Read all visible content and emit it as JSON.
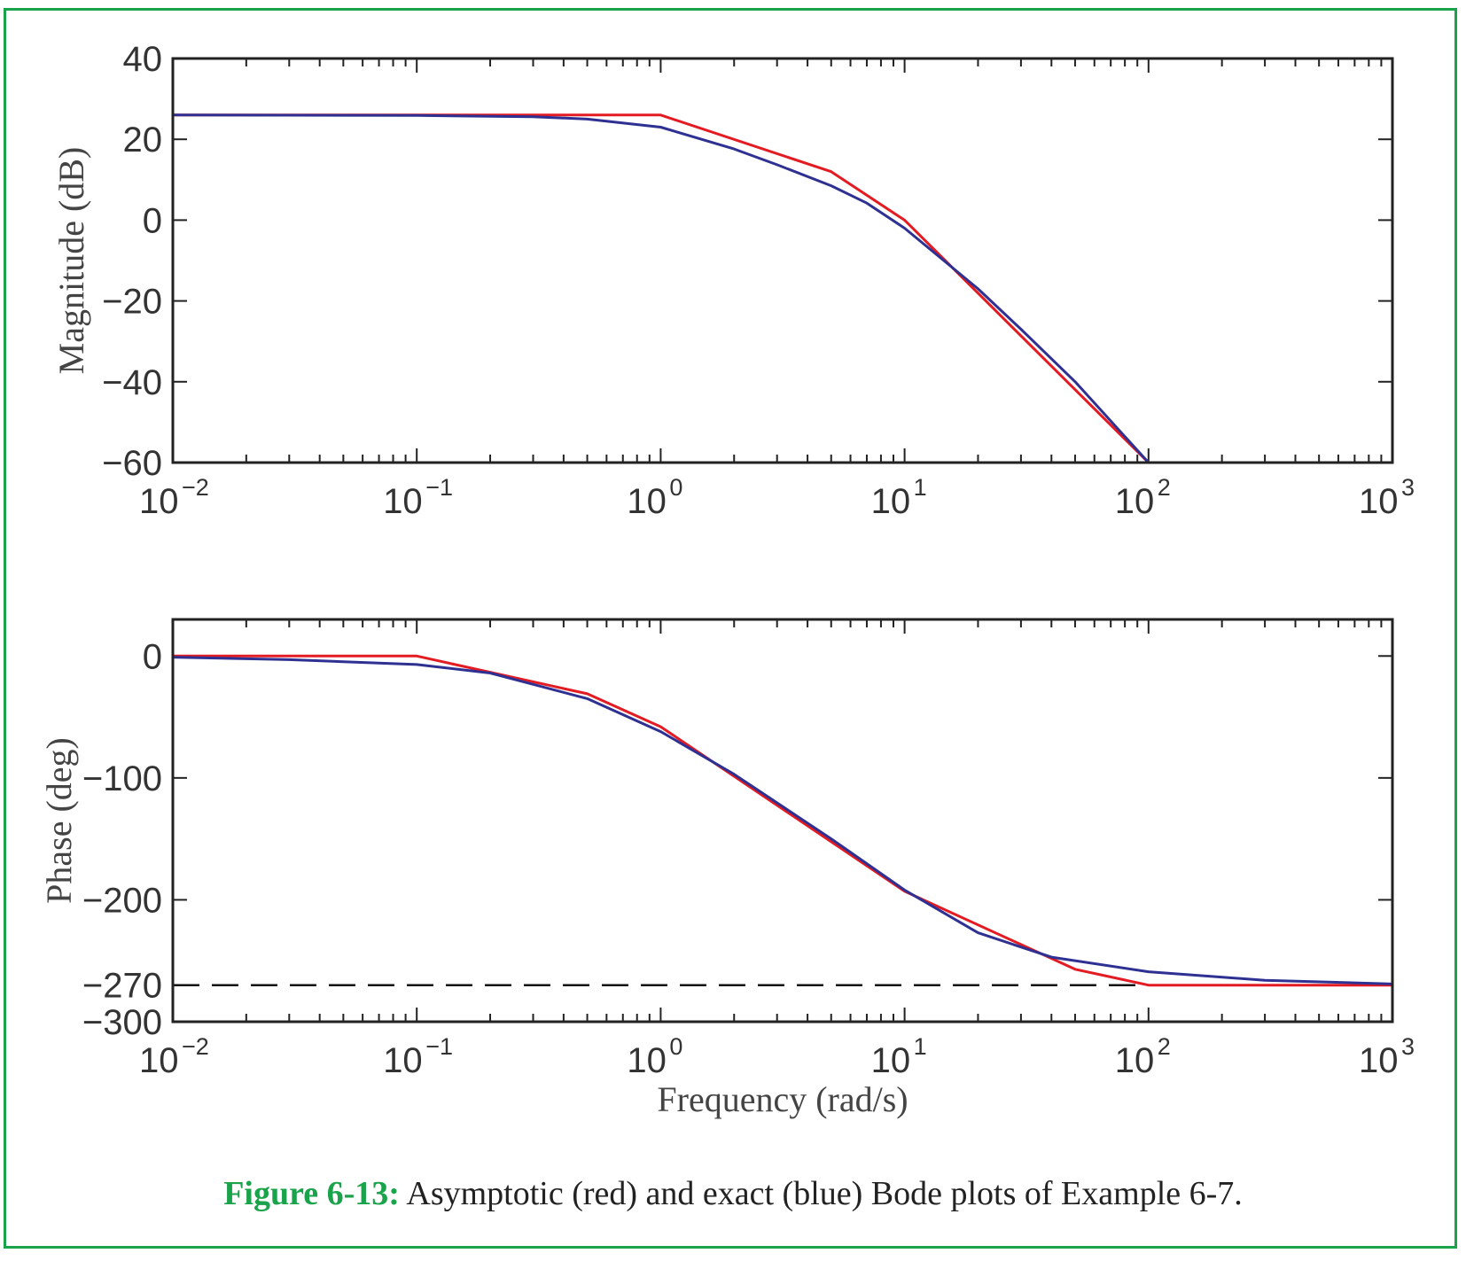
{
  "chart_data": [
    {
      "type": "line",
      "ylabel": "Magnitude (dB)",
      "xscale": "log",
      "xlim": [
        0.01,
        1000
      ],
      "ylim": [
        -60,
        40
      ],
      "yticks": [
        40,
        20,
        0,
        -20,
        -40,
        -60
      ],
      "ytick_labels": [
        "40",
        "20",
        "0",
        "−20",
        "−40",
        "−60"
      ],
      "xticks": [
        0.01,
        0.1,
        1,
        10,
        100,
        1000
      ],
      "xtick_labels": [
        {
          "base": "10",
          "exp": "−2"
        },
        {
          "base": "10",
          "exp": "−1"
        },
        {
          "base": "10",
          "exp": "0"
        },
        {
          "base": "10",
          "exp": "1"
        },
        {
          "base": "10",
          "exp": "2"
        },
        {
          "base": "10",
          "exp": "3"
        }
      ],
      "series": [
        {
          "color": "#e31b23",
          "style": "asymptotic",
          "x": [
            0.01,
            1,
            5,
            10,
            100
          ],
          "y": [
            26,
            26,
            12,
            0,
            -60
          ]
        },
        {
          "color": "#2e3192",
          "style": "exact",
          "x": [
            0.01,
            0.1,
            0.3,
            0.5,
            1,
            2,
            3,
            5,
            7,
            10,
            20,
            30,
            50,
            100
          ],
          "y": [
            26,
            25.9,
            25.6,
            25,
            23,
            17.6,
            13.7,
            8.5,
            4.2,
            -2,
            -17,
            -27,
            -40,
            -60
          ]
        }
      ]
    },
    {
      "type": "line",
      "ylabel": "Phase (deg)",
      "xlabel": "Frequency (rad/s)",
      "xscale": "log",
      "xlim": [
        0.01,
        1000
      ],
      "ylim": [
        -300,
        30
      ],
      "yticks": [
        0,
        -100,
        -200,
        -270,
        -300
      ],
      "ytick_labels": [
        "0",
        "−100",
        "−200",
        "−270",
        "−300"
      ],
      "xticks": [
        0.01,
        0.1,
        1,
        10,
        100,
        1000
      ],
      "xtick_labels": [
        {
          "base": "10",
          "exp": "−2"
        },
        {
          "base": "10",
          "exp": "−1"
        },
        {
          "base": "10",
          "exp": "0"
        },
        {
          "base": "10",
          "exp": "1"
        },
        {
          "base": "10",
          "exp": "2"
        },
        {
          "base": "10",
          "exp": "3"
        }
      ],
      "reference_line": {
        "y": -270,
        "style": "dashed",
        "color": "#111111"
      },
      "series": [
        {
          "color": "#e31b23",
          "style": "asymptotic",
          "x": [
            0.01,
            0.1,
            0.5,
            1,
            10,
            50,
            100,
            1000
          ],
          "y": [
            0,
            0,
            -31,
            -58,
            -193,
            -257,
            -270,
            -270
          ]
        },
        {
          "color": "#2e3192",
          "style": "exact",
          "x": [
            0.01,
            0.03,
            0.1,
            0.2,
            0.5,
            1,
            2,
            5,
            10,
            20,
            40,
            100,
            300,
            1000
          ],
          "y": [
            -1,
            -3,
            -7,
            -14,
            -35,
            -62,
            -97,
            -150,
            -192,
            -227,
            -247,
            -259,
            -266,
            -269
          ]
        }
      ]
    }
  ],
  "caption": {
    "label": "Figure 6-13:",
    "text": " Asymptotic (red) and exact (blue) Bode plots of Example 6-7."
  }
}
